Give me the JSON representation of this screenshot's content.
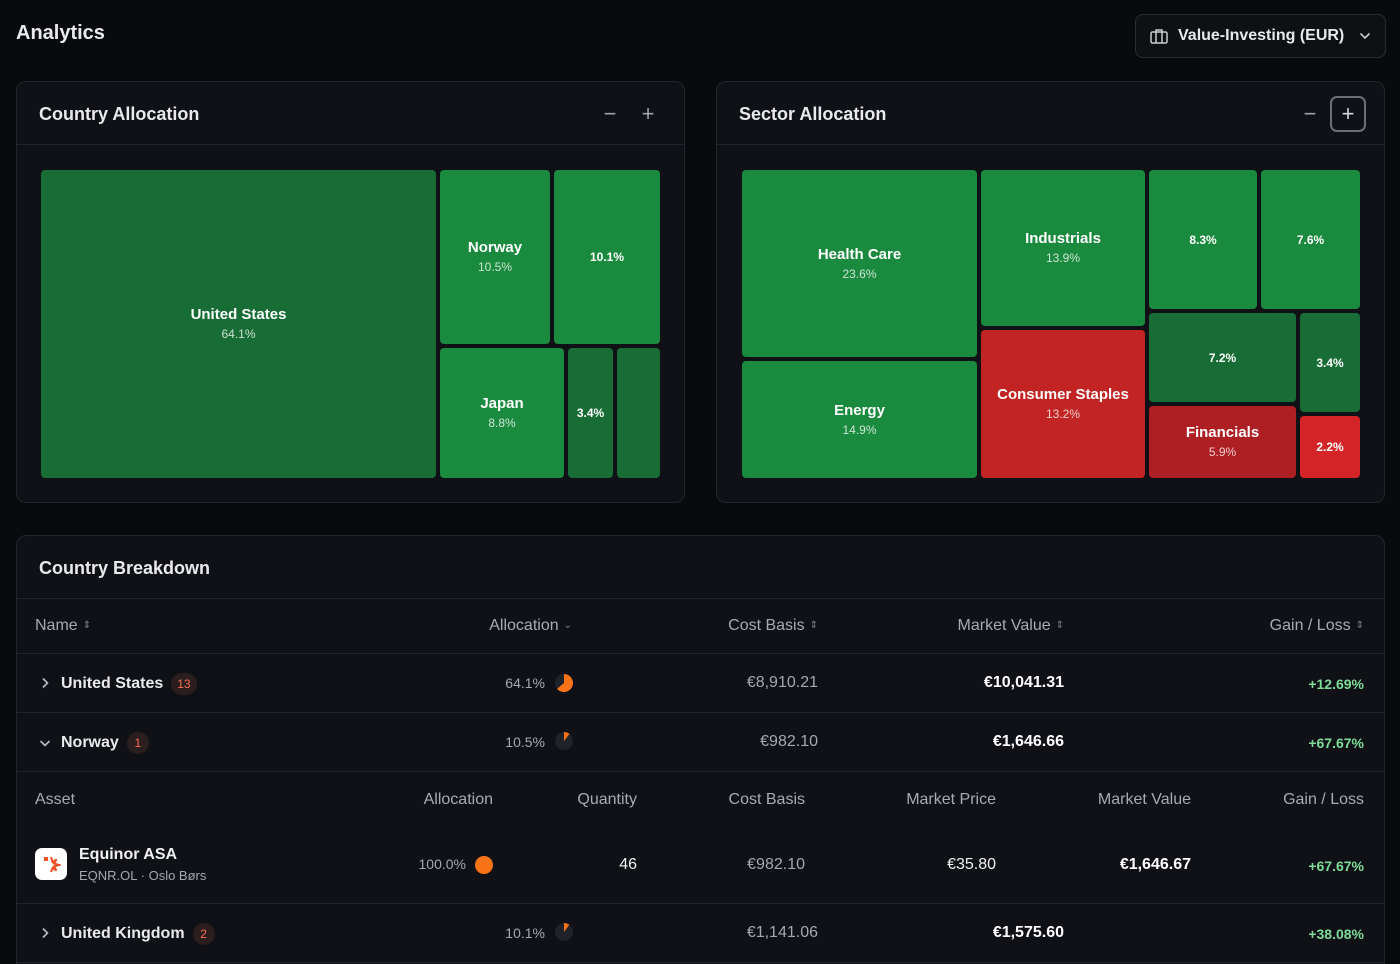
{
  "header": {
    "title": "Analytics",
    "portfolio_select": "Value-Investing (EUR)"
  },
  "country_allocation": {
    "title": "Country Allocation",
    "zoom_out": "−",
    "zoom_in": "+",
    "tiles": [
      {
        "name": "United States",
        "pct": "64.1%",
        "color": "#176d35"
      },
      {
        "name": "Norway",
        "pct": "10.5%",
        "color": "#1a8a3f"
      },
      {
        "name": "",
        "pct": "10.1%",
        "color": "#1a8a3f"
      },
      {
        "name": "Japan",
        "pct": "8.8%",
        "color": "#1a8a3f"
      },
      {
        "name": "",
        "pct": "3.4%",
        "color": "#176d35"
      },
      {
        "name": "",
        "pct": "",
        "color": "#176d35"
      }
    ]
  },
  "sector_allocation": {
    "title": "Sector Allocation",
    "zoom_out": "−",
    "zoom_in": "+",
    "tiles": [
      {
        "name": "Health Care",
        "pct": "23.6%",
        "color": "#1a8a3f"
      },
      {
        "name": "Energy",
        "pct": "14.9%",
        "color": "#1a8a3f"
      },
      {
        "name": "Industrials",
        "pct": "13.9%",
        "color": "#1a8a3f"
      },
      {
        "name": "Consumer Staples",
        "pct": "13.2%",
        "color": "#c22323"
      },
      {
        "name": "",
        "pct": "8.3%",
        "color": "#1a8a3f"
      },
      {
        "name": "",
        "pct": "7.6%",
        "color": "#1a8a3f"
      },
      {
        "name": "",
        "pct": "7.2%",
        "color": "#176d35"
      },
      {
        "name": "",
        "pct": "3.4%",
        "color": "#176d35"
      },
      {
        "name": "Financials",
        "pct": "5.9%",
        "color": "#ae1f23"
      },
      {
        "name": "",
        "pct": "2.2%",
        "color": "#d42428"
      }
    ]
  },
  "breakdown": {
    "title": "Country Breakdown",
    "columns": {
      "name": "Name",
      "allocation": "Allocation",
      "cost_basis": "Cost Basis",
      "market_value": "Market Value",
      "gain_loss": "Gain / Loss"
    },
    "rows": [
      {
        "name": "United States",
        "count": "13",
        "allocation": "64.1%",
        "alloc_fraction": 0.641,
        "cost_basis": "€8,910.21",
        "market_value": "€10,041.31",
        "gain": "+12.69%",
        "expanded": false
      },
      {
        "name": "Norway",
        "count": "1",
        "allocation": "10.5%",
        "alloc_fraction": 0.105,
        "cost_basis": "€982.10",
        "market_value": "€1,646.66",
        "gain": "+67.67%",
        "expanded": true
      },
      {
        "name": "United Kingdom",
        "count": "2",
        "allocation": "10.1%",
        "alloc_fraction": 0.101,
        "cost_basis": "€1,141.06",
        "market_value": "€1,575.60",
        "gain": "+38.08%",
        "expanded": false
      }
    ],
    "asset_columns": {
      "asset": "Asset",
      "allocation": "Allocation",
      "quantity": "Quantity",
      "cost_basis": "Cost Basis",
      "market_price": "Market Price",
      "market_value": "Market Value",
      "gain_loss": "Gain / Loss"
    },
    "asset": {
      "name": "Equinor ASA",
      "subtitle": "EQNR.OL · Oslo Børs",
      "allocation": "100.0%",
      "alloc_fraction": 1.0,
      "quantity": "46",
      "cost_basis": "€982.10",
      "market_price": "€35.80",
      "market_value": "€1,646.67",
      "gain": "+67.67%"
    }
  },
  "colors": {
    "accent_orange": "#f97316",
    "gain_green": "#7ddc97",
    "badge_red": "#ff6b55"
  }
}
